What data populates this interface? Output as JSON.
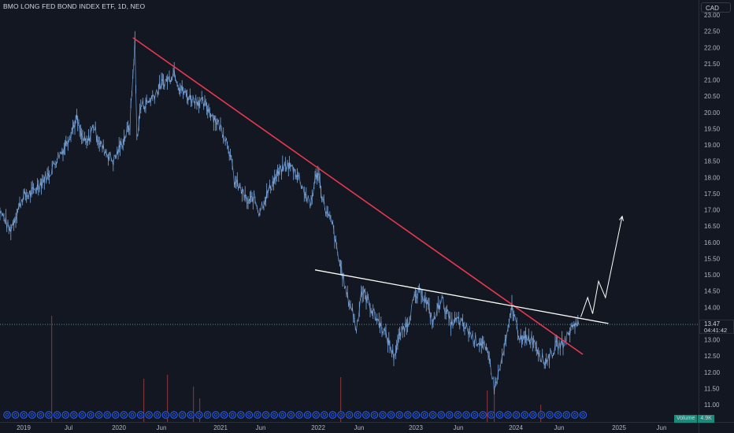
{
  "header": {
    "title": "BMO LONG FED BOND INDEX ETF, 1D, NEO",
    "currency": "CAD"
  },
  "price_label": {
    "price": "13.47",
    "countdown": "04:41:42"
  },
  "volume_label": {
    "label": "Volume",
    "value": "4.9K"
  },
  "colors": {
    "background": "#131722",
    "price_line": "#7aa7de",
    "downtrend": "#e8384f",
    "resistance": "#ffffff",
    "projection": "#ffffff",
    "volume": "#8b3a3a",
    "last_price": "#5f8a84"
  },
  "chart_data": {
    "type": "line",
    "title": "BMO LONG FED BOND INDEX ETF, 1D, NEO",
    "x_ticks": [
      "2019",
      "Jul",
      "2020",
      "Jun",
      "2021",
      "Jun",
      "2022",
      "Jun",
      "2023",
      "Jun",
      "2024",
      "Jun",
      "2025",
      "Jun"
    ],
    "y_ticks": [
      "23.00",
      "22.50",
      "22.00",
      "21.50",
      "21.00",
      "20.50",
      "20.00",
      "19.50",
      "19.00",
      "18.50",
      "18.00",
      "17.50",
      "17.00",
      "16.50",
      "16.00",
      "15.50",
      "15.00",
      "14.50",
      "14.00",
      "13.50",
      "13.00",
      "12.50",
      "12.00",
      "11.50",
      "11.00"
    ],
    "ylim": [
      10.75,
      23.2
    ],
    "xlim": [
      2018.75,
      2025.75
    ],
    "grid": false,
    "last_price": 13.47,
    "series": [
      {
        "values": [
          [
            2018.75,
            17.2
          ],
          [
            2018.85,
            16.7
          ],
          [
            2018.9,
            16.35
          ],
          [
            2018.97,
            16.9
          ],
          [
            2019.03,
            17.4
          ],
          [
            2019.12,
            17.5
          ],
          [
            2019.2,
            17.8
          ],
          [
            2019.3,
            18.1
          ],
          [
            2019.38,
            18.6
          ],
          [
            2019.45,
            18.9
          ],
          [
            2019.52,
            19.4
          ],
          [
            2019.58,
            19.8
          ],
          [
            2019.62,
            19.3
          ],
          [
            2019.68,
            19.0
          ],
          [
            2019.75,
            19.6
          ],
          [
            2019.82,
            19.0
          ],
          [
            2019.9,
            18.7
          ],
          [
            2019.95,
            18.5
          ],
          [
            2020.0,
            18.8
          ],
          [
            2020.06,
            19.2
          ],
          [
            2020.12,
            19.6
          ],
          [
            2020.17,
            22.2
          ],
          [
            2020.19,
            19.2
          ],
          [
            2020.23,
            20.2
          ],
          [
            2020.3,
            20.3
          ],
          [
            2020.38,
            20.6
          ],
          [
            2020.45,
            20.9
          ],
          [
            2020.52,
            21.05
          ],
          [
            2020.57,
            21.3
          ],
          [
            2020.62,
            20.8
          ],
          [
            2020.7,
            20.5
          ],
          [
            2020.78,
            20.4
          ],
          [
            2020.85,
            20.3
          ],
          [
            2020.92,
            20.1
          ],
          [
            2020.98,
            19.8
          ],
          [
            2021.05,
            19.5
          ],
          [
            2021.12,
            19.0
          ],
          [
            2021.18,
            17.9
          ],
          [
            2021.25,
            17.6
          ],
          [
            2021.32,
            17.2
          ],
          [
            2021.38,
            17.4
          ],
          [
            2021.43,
            16.95
          ],
          [
            2021.5,
            17.4
          ],
          [
            2021.58,
            17.9
          ],
          [
            2021.65,
            18.2
          ],
          [
            2021.72,
            18.4
          ],
          [
            2021.8,
            18.2
          ],
          [
            2021.85,
            17.9
          ],
          [
            2021.9,
            17.5
          ],
          [
            2021.95,
            17.1
          ],
          [
            2022.0,
            17.9
          ],
          [
            2022.03,
            18.2
          ],
          [
            2022.08,
            17.3
          ],
          [
            2022.12,
            16.9
          ],
          [
            2022.18,
            16.5
          ],
          [
            2022.23,
            15.6
          ],
          [
            2022.28,
            15.0
          ],
          [
            2022.32,
            14.4
          ],
          [
            2022.38,
            13.9
          ],
          [
            2022.42,
            13.3
          ],
          [
            2022.47,
            14.5
          ],
          [
            2022.52,
            14.3
          ],
          [
            2022.6,
            13.8
          ],
          [
            2022.68,
            13.4
          ],
          [
            2022.75,
            12.9
          ],
          [
            2022.8,
            12.5
          ],
          [
            2022.87,
            13.2
          ],
          [
            2022.95,
            13.6
          ],
          [
            2023.0,
            14.2
          ],
          [
            2023.08,
            14.5
          ],
          [
            2023.15,
            14.0
          ],
          [
            2023.2,
            13.5
          ],
          [
            2023.28,
            14.3
          ],
          [
            2023.33,
            13.9
          ],
          [
            2023.38,
            13.5
          ],
          [
            2023.45,
            13.6
          ],
          [
            2023.55,
            13.3
          ],
          [
            2023.62,
            13.0
          ],
          [
            2023.7,
            12.9
          ],
          [
            2023.78,
            12.3
          ],
          [
            2023.82,
            11.5
          ],
          [
            2023.87,
            12.0
          ],
          [
            2023.92,
            12.7
          ],
          [
            2023.97,
            13.4
          ],
          [
            2024.0,
            14.05
          ],
          [
            2024.05,
            13.4
          ],
          [
            2024.1,
            12.9
          ],
          [
            2024.15,
            13.1
          ],
          [
            2024.22,
            13.0
          ],
          [
            2024.28,
            12.6
          ],
          [
            2024.33,
            12.3
          ],
          [
            2024.38,
            12.5
          ],
          [
            2024.45,
            12.8
          ],
          [
            2024.52,
            12.9
          ],
          [
            2024.58,
            13.2
          ],
          [
            2024.63,
            13.5
          ],
          [
            2024.68,
            13.47
          ]
        ]
      }
    ],
    "annotations": [
      {
        "kind": "downtrend",
        "points": [
          [
            2020.15,
            22.3
          ],
          [
            2024.72,
            12.55
          ]
        ]
      },
      {
        "kind": "resistance",
        "points": [
          [
            2022.0,
            15.15
          ],
          [
            2024.98,
            13.5
          ]
        ]
      },
      {
        "kind": "projection",
        "points": [
          [
            2024.7,
            13.7
          ],
          [
            2024.77,
            14.3
          ],
          [
            2024.82,
            13.8
          ],
          [
            2024.88,
            14.8
          ],
          [
            2024.95,
            14.3
          ],
          [
            2025.12,
            16.8
          ]
        ]
      }
    ]
  }
}
